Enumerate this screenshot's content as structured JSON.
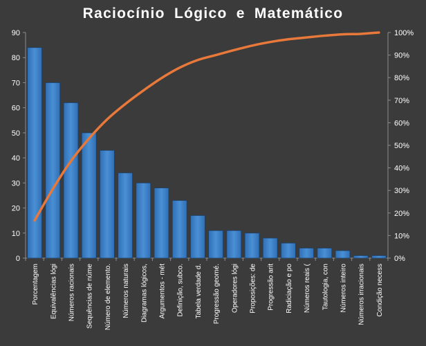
{
  "chart_data": {
    "type": "bar",
    "title": "Raciocínio  Lógico  e  Matemático",
    "categories": [
      "Porcentagem",
      "Equivalências lógi",
      "Números racionais",
      "Sequências de núme",
      "Número de elemento.",
      "Números naturais",
      "Diagramas lógicos,",
      "Argumentos - mét",
      "Definição, subco.",
      "Tabela verdade d.",
      "Progressão geomé.",
      "Operadores lógi",
      "Proposições: de",
      "Progressão arit",
      "Radiciação e po",
      "Números reais (",
      "Tautologia, con",
      "Números inteiro",
      "Números irracionais",
      "Condição necess"
    ],
    "series": [
      {
        "type": "bar",
        "values": [
          84,
          70,
          62,
          50,
          43,
          34,
          30,
          28,
          23,
          17,
          11,
          11,
          10,
          8,
          6,
          4,
          4,
          3,
          1,
          1
        ],
        "color": "#4a8fd4"
      },
      {
        "type": "line",
        "axis": "secondary",
        "values": [
          16.7,
          30.6,
          43.0,
          53.0,
          61.5,
          68.3,
          74.3,
          79.8,
          84.4,
          87.8,
          90.0,
          92.2,
          94.2,
          95.8,
          97.0,
          97.8,
          98.6,
          99.2,
          99.4,
          100.0
        ],
        "color": "#e8793a"
      }
    ],
    "y_ticks": [
      "0",
      "10",
      "20",
      "30",
      "40",
      "50",
      "60",
      "70",
      "80",
      "90"
    ],
    "y2_ticks": [
      "0%",
      "10%",
      "20%",
      "30%",
      "40%",
      "50%",
      "60%",
      "70%",
      "80%",
      "90%",
      "100%"
    ],
    "ylim": [
      0,
      90
    ],
    "y2lim": [
      0,
      100
    ],
    "grid": false,
    "legend": "none",
    "colors": {
      "background": "#3b3b3b",
      "axis": "#8c8c8c",
      "text": "#ffffff"
    }
  }
}
